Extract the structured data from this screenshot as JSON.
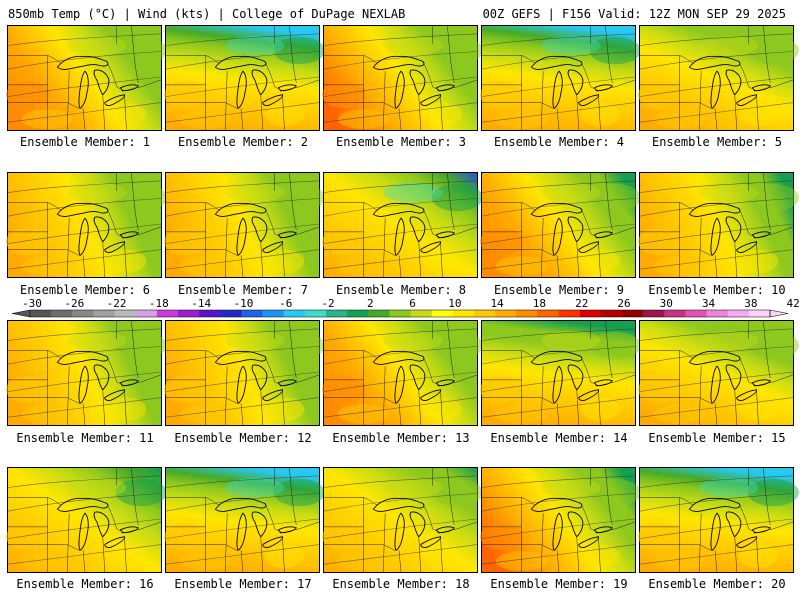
{
  "header": {
    "left": "850mb Temp (°C) | Wind (kts) | College of DuPage NEXLAB",
    "right": "00Z GEFS | F156 Valid: 12Z MON SEP 29 2025"
  },
  "colorbar": {
    "labels": [
      "-30",
      "-26",
      "-22",
      "-18",
      "-14",
      "-10",
      "-6",
      "-2",
      "2",
      "6",
      "10",
      "14",
      "18",
      "22",
      "26",
      "30",
      "34",
      "38",
      "42"
    ],
    "colors": [
      "#555555",
      "#6e6e6e",
      "#878787",
      "#a0a0a0",
      "#b9b9b9",
      "#d4a0e8",
      "#c83cdc",
      "#9b1ed2",
      "#5a14c8",
      "#2828c8",
      "#1e64e6",
      "#1e96f0",
      "#28c8f0",
      "#3cdcc8",
      "#28b48c",
      "#14a050",
      "#46aa28",
      "#8cc81e",
      "#c8dc14",
      "#ffff00",
      "#ffe600",
      "#ffc800",
      "#ffaa00",
      "#ff8c00",
      "#ff6400",
      "#ff3200",
      "#dc0000",
      "#b40000",
      "#960000",
      "#a0144b",
      "#c83282",
      "#e650b4",
      "#f082dc",
      "#f5aaf0",
      "#fad2fa"
    ]
  },
  "members": [
    {
      "label": "Ensemble Member: 1",
      "pattern": "W",
      "warm": 0.62,
      "cold": 0.15
    },
    {
      "label": "Ensemble Member: 2",
      "pattern": "N",
      "warm": 0.45,
      "cold": 0.55
    },
    {
      "label": "Ensemble Member: 3",
      "pattern": "W",
      "warm": 0.75,
      "cold": 0.2
    },
    {
      "label": "Ensemble Member: 4",
      "pattern": "N",
      "warm": 0.35,
      "cold": 0.6
    },
    {
      "label": "Ensemble Member: 5",
      "pattern": "S",
      "warm": 0.55,
      "cold": 0.2
    },
    {
      "label": "Ensemble Member: 6",
      "pattern": "E",
      "warm": 0.55,
      "cold": 0.35
    },
    {
      "label": "Ensemble Member: 7",
      "pattern": "E",
      "warm": 0.5,
      "cold": 0.3
    },
    {
      "label": "Ensemble Member: 8",
      "pattern": "NE",
      "warm": 0.4,
      "cold": 0.9
    },
    {
      "label": "Ensemble Member: 9",
      "pattern": "W",
      "warm": 0.7,
      "cold": 0.45
    },
    {
      "label": "Ensemble Member: 10",
      "pattern": "E",
      "warm": 0.55,
      "cold": 0.4
    },
    {
      "label": "Ensemble Member: 11",
      "pattern": "E",
      "warm": 0.6,
      "cold": 0.35
    },
    {
      "label": "Ensemble Member: 12",
      "pattern": "E",
      "warm": 0.5,
      "cold": 0.3
    },
    {
      "label": "Ensemble Member: 13",
      "pattern": "W",
      "warm": 0.7,
      "cold": 0.35
    },
    {
      "label": "Ensemble Member: 14",
      "pattern": "N",
      "warm": 0.55,
      "cold": 0.4
    },
    {
      "label": "Ensemble Member: 15",
      "pattern": "S",
      "warm": 0.45,
      "cold": 0.2
    },
    {
      "label": "Ensemble Member: 16",
      "pattern": "NE",
      "warm": 0.5,
      "cold": 0.5
    },
    {
      "label": "Ensemble Member: 17",
      "pattern": "N",
      "warm": 0.5,
      "cold": 0.6
    },
    {
      "label": "Ensemble Member: 18",
      "pattern": "NE",
      "warm": 0.6,
      "cold": 0.45
    },
    {
      "label": "Ensemble Member: 19",
      "pattern": "W",
      "warm": 0.75,
      "cold": 0.45
    },
    {
      "label": "Ensemble Member: 20",
      "pattern": "N",
      "warm": 0.5,
      "cold": 0.8
    }
  ]
}
